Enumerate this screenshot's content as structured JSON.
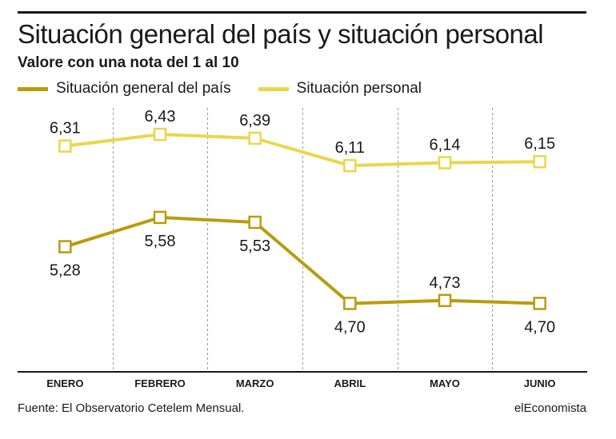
{
  "header": {
    "title": "Situación general del país y situación personal",
    "subtitle": "Valore con una nota del 1 al 10"
  },
  "legend": {
    "items": [
      {
        "label": "Situación general del país",
        "color": "#b99c0a"
      },
      {
        "label": "Situación personal",
        "color": "#ecd64a"
      }
    ]
  },
  "chart_data": {
    "type": "line",
    "categories": [
      "ENERO",
      "FEBRERO",
      "MARZO",
      "ABRIL",
      "MAYO",
      "JUNIO"
    ],
    "series": [
      {
        "name": "Situación general del país",
        "color": "#b99c0a",
        "values": [
          5.28,
          5.58,
          5.53,
          4.7,
          4.73,
          4.7
        ],
        "labels": [
          "5,28",
          "5,58",
          "5,53",
          "4,70",
          "4,73",
          "4,70"
        ]
      },
      {
        "name": "Situación personal",
        "color": "#ecd64a",
        "values": [
          6.31,
          6.43,
          6.39,
          6.11,
          6.14,
          6.15
        ],
        "labels": [
          "6,31",
          "6,43",
          "6,39",
          "6,11",
          "6,14",
          "6,15"
        ]
      }
    ],
    "ylim": [
      4.0,
      6.7
    ],
    "grid": "vertical dashed separators between months"
  },
  "footer": {
    "source": "Fuente: El Observatorio Cetelem Mensual.",
    "brand": "elEconomista"
  }
}
